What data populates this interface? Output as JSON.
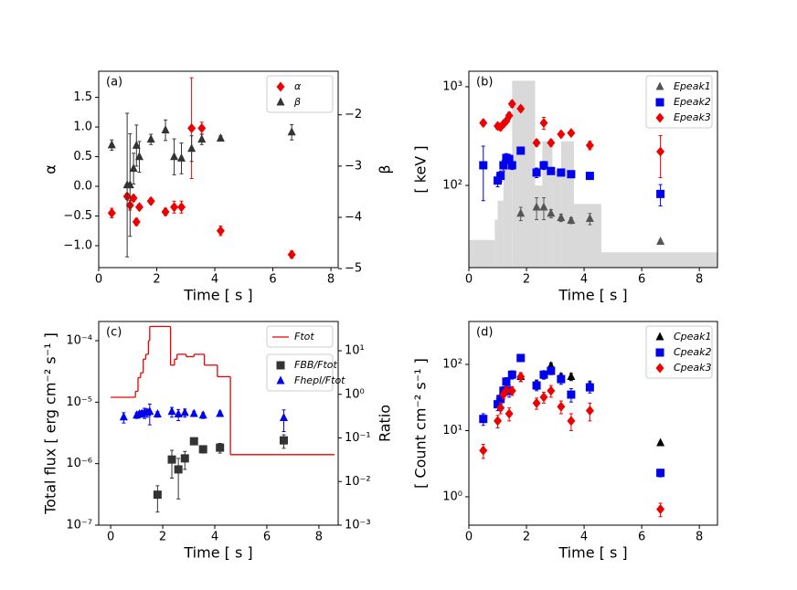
{
  "chart_data": [
    {
      "type": "scatter",
      "panel_label": "(a)",
      "xlabel": "Time [ s ]",
      "ylabel": "α",
      "y2label": "β",
      "xlim": [
        0,
        8.25
      ],
      "ylim": [
        -1.37,
        1.94
      ],
      "y2lim": [
        -4.98,
        -1.15
      ],
      "ylog": false,
      "y2log": false,
      "xticks": [
        0,
        2,
        4,
        6,
        8
      ],
      "yticks": [
        {
          "value": -1,
          "label": "−1.0"
        },
        {
          "value": -0.5,
          "label": "−0.5"
        },
        {
          "value": 0,
          "label": "0.0"
        },
        {
          "value": 0.5,
          "label": "0.5"
        },
        {
          "value": 1,
          "label": "1.0"
        },
        {
          "value": 1.5,
          "label": "1.5"
        }
      ],
      "y2ticks": [
        {
          "value": -5,
          "label": "−5"
        },
        {
          "value": -4,
          "label": "−4"
        },
        {
          "value": -3,
          "label": "−3"
        },
        {
          "value": -2,
          "label": "−2"
        }
      ],
      "legend": "upper right",
      "series": [
        {
          "name": "α",
          "color": "#ee0000",
          "marker": "diamond",
          "x": [
            0.45,
            0.98,
            1.08,
            1.2,
            1.3,
            1.4,
            1.8,
            2.3,
            2.6,
            2.85,
            3.2,
            3.55,
            4.2,
            6.65
          ],
          "values": [
            -0.45,
            -0.17,
            -0.32,
            -0.2,
            -0.6,
            -0.35,
            -0.25,
            -0.43,
            -0.35,
            -0.35,
            0.98,
            0.98,
            -0.75,
            -1.15
          ],
          "errors": [
            0.08,
            0.05,
            0.08,
            0.05,
            0.06,
            0.05,
            0.05,
            0.06,
            0.1,
            0.1,
            0.85,
            0.1,
            0.08,
            0.06
          ]
        },
        {
          "name": "β",
          "color": "#333333",
          "marker": "triangle",
          "axis": "y2",
          "x": [
            0.45,
            0.98,
            1.08,
            1.2,
            1.3,
            1.4,
            1.8,
            2.3,
            2.6,
            2.85,
            3.2,
            3.55,
            4.2,
            6.65
          ],
          "values": [
            -2.59,
            -3.37,
            -3.37,
            -3.05,
            -2.6,
            -2.82,
            -2.48,
            -2.3,
            -2.82,
            -2.85,
            -2.66,
            -2.48,
            -2.46,
            -2.34
          ],
          "errors": [
            0.1,
            1.4,
            1.0,
            0.3,
            0.4,
            0.3,
            0.1,
            0.2,
            0.35,
            0.3,
            0.25,
            0.1,
            0.05,
            0.15
          ]
        }
      ]
    },
    {
      "type": "scatter",
      "panel_label": "(b)",
      "xlabel": "Time [ s ]",
      "ylabel": "[ keV ]",
      "xlim": [
        0,
        8.63
      ],
      "ylim": [
        14.7,
        1436
      ],
      "ylog": true,
      "xticks": [
        0,
        2,
        4,
        6,
        8
      ],
      "yticks": [
        {
          "value": 100,
          "label": "10²"
        },
        {
          "value": 1000,
          "label": "10³"
        }
      ],
      "legend": "upper right",
      "histogram": {
        "color": "#d9d9d9",
        "bins": [
          0,
          0.9,
          1.0,
          1.2,
          1.5,
          2.3,
          2.55,
          2.9,
          3.2,
          3.65,
          4.6,
          8.63
        ],
        "values": [
          28,
          45,
          70,
          150,
          1150,
          100,
          280,
          140,
          280,
          65,
          21
        ]
      },
      "series": [
        {
          "name": "Epeak1",
          "color": "#555555",
          "marker": "triangle",
          "x": [
            1.8,
            2.35,
            2.6,
            2.85,
            3.2,
            3.55,
            4.2,
            6.65
          ],
          "values": [
            52,
            60,
            60,
            52,
            47,
            44,
            46,
            27
          ],
          "errors": [
            8,
            15,
            15,
            5,
            4,
            3,
            6,
            1
          ]
        },
        {
          "name": "Epeak2",
          "color": "#0000ee",
          "marker": "square",
          "x": [
            0.5,
            1.0,
            1.1,
            1.2,
            1.3,
            1.4,
            1.5,
            1.8,
            2.35,
            2.6,
            2.85,
            3.2,
            3.55,
            4.2,
            6.65
          ],
          "values": [
            160,
            112,
            125,
            160,
            190,
            185,
            160,
            225,
            135,
            160,
            140,
            135,
            130,
            125,
            82
          ],
          "errors": [
            90,
            15,
            15,
            20,
            20,
            20,
            15,
            15,
            15,
            15,
            10,
            10,
            10,
            10,
            20
          ]
        },
        {
          "name": "Epeak3",
          "color": "#ee0000",
          "marker": "diamond",
          "x": [
            0.5,
            1.0,
            1.1,
            1.2,
            1.3,
            1.4,
            1.5,
            1.8,
            2.35,
            2.6,
            2.85,
            3.2,
            3.55,
            4.2,
            6.65
          ],
          "values": [
            430,
            400,
            390,
            420,
            450,
            510,
            670,
            600,
            270,
            430,
            270,
            330,
            340,
            255,
            220
          ],
          "errors": [
            30,
            30,
            30,
            30,
            30,
            40,
            50,
            40,
            20,
            60,
            20,
            20,
            20,
            25,
            100
          ]
        }
      ]
    },
    {
      "type": "scatter",
      "panel_label": "(c)",
      "xlabel": "Time [ s ]",
      "ylabel": "Total flux [ erg cm⁻² s⁻¹ ]",
      "y2label": "Ratio",
      "xlim": [
        -0.46,
        8.74
      ],
      "ylim": [
        1e-07,
        0.000205
      ],
      "y2lim": [
        0.001,
        46.9
      ],
      "ylog": true,
      "y2log": true,
      "xticks": [
        0,
        2,
        4,
        6,
        8
      ],
      "yticks": [
        {
          "value": 1e-07,
          "label": "10⁻⁷"
        },
        {
          "value": 1e-06,
          "label": "10⁻⁶"
        },
        {
          "value": 1e-05,
          "label": "10⁻⁵"
        },
        {
          "value": 0.0001,
          "label": "10⁻⁴"
        }
      ],
      "y2ticks": [
        {
          "value": 0.001,
          "label": "10⁻³"
        },
        {
          "value": 0.01,
          "label": "10⁻²"
        },
        {
          "value": 0.1,
          "label": "10⁻¹"
        },
        {
          "value": 1,
          "label": "10⁰"
        },
        {
          "value": 10,
          "label": "10¹"
        }
      ],
      "legend": "upper right",
      "series": [
        {
          "name": "Ftot",
          "color": "#ee0000",
          "style": "step",
          "bins": [
            0,
            0.95,
            1.05,
            1.15,
            1.25,
            1.35,
            1.45,
            1.5,
            2.3,
            2.45,
            2.55,
            2.9,
            3.2,
            3.6,
            4.1,
            4.6,
            8.6
          ],
          "values": [
            1.2e-05,
            1.5e-05,
            2.5e-05,
            3e-05,
            5e-05,
            6e-05,
            0.0001,
            0.00017,
            4e-05,
            5e-05,
            6e-05,
            5.5e-05,
            6e-05,
            4e-05,
            2.6e-05,
            1.4e-06
          ]
        },
        {
          "name": "FBB/Ftot",
          "color": "#333333",
          "marker": "square",
          "axis": "y2",
          "x": [
            1.8,
            2.35,
            2.6,
            2.85,
            3.2,
            3.55,
            4.2,
            6.65
          ],
          "values": [
            0.005,
            0.032,
            0.019,
            0.034,
            0.084,
            0.055,
            0.06,
            0.088
          ],
          "errors": [
            0.003,
            0.02,
            0.015,
            0.015,
            0.01,
            0.01,
            0.015,
            0.03
          ]
        },
        {
          "name": "Fhepl/Ftot",
          "color": "#0000ee",
          "marker": "triangle",
          "axis": "y2",
          "x": [
            0.5,
            1.0,
            1.1,
            1.2,
            1.3,
            1.4,
            1.5,
            1.8,
            2.35,
            2.6,
            2.85,
            3.2,
            3.55,
            4.2,
            6.65
          ],
          "values": [
            0.3,
            0.33,
            0.35,
            0.36,
            0.38,
            0.38,
            0.4,
            0.35,
            0.4,
            0.35,
            0.38,
            0.36,
            0.33,
            0.36,
            0.29
          ],
          "errors": [
            0.08,
            0.05,
            0.05,
            0.06,
            0.1,
            0.08,
            0.2,
            0.05,
            0.1,
            0.1,
            0.08,
            0.05,
            0.05,
            0.05,
            0.15
          ]
        }
      ]
    },
    {
      "type": "scatter",
      "panel_label": "(d)",
      "xlabel": "Time [ s ]",
      "ylabel": "[ Count cm⁻² s⁻¹ ]",
      "xlim": [
        0,
        8.63
      ],
      "ylim": [
        0.373,
        445
      ],
      "ylog": true,
      "xticks": [
        0,
        2,
        4,
        6,
        8
      ],
      "yticks": [
        {
          "value": 1,
          "label": "10⁰"
        },
        {
          "value": 10,
          "label": "10¹"
        },
        {
          "value": 100,
          "label": "10²"
        }
      ],
      "legend": "upper right",
      "series": [
        {
          "name": "Cpeak1",
          "color": "#000000",
          "marker": "triangle",
          "x": [
            1.8,
            2.35,
            2.6,
            2.85,
            3.2,
            3.55,
            4.2,
            6.65
          ],
          "values": [
            65,
            50,
            70,
            95,
            65,
            65,
            48,
            6.5
          ],
          "errors": [
            10,
            8,
            10,
            10,
            8,
            8,
            8,
            0.3
          ]
        },
        {
          "name": "Cpeak2",
          "color": "#0000ee",
          "marker": "square",
          "x": [
            0.5,
            1.0,
            1.1,
            1.2,
            1.3,
            1.4,
            1.5,
            1.8,
            2.35,
            2.6,
            2.85,
            3.2,
            3.55,
            4.2,
            6.65
          ],
          "values": [
            15,
            25,
            30,
            40,
            55,
            40,
            70,
            125,
            48,
            70,
            80,
            60,
            35,
            45,
            2.3
          ],
          "errors": [
            3,
            5,
            5,
            6,
            8,
            8,
            10,
            15,
            8,
            10,
            10,
            10,
            8,
            8,
            0.3
          ]
        },
        {
          "name": "Cpeak3",
          "color": "#ee0000",
          "marker": "diamond",
          "x": [
            0.5,
            1.0,
            1.1,
            1.2,
            1.3,
            1.4,
            1.5,
            1.8,
            2.35,
            2.6,
            2.85,
            3.2,
            3.55,
            4.2,
            6.65
          ],
          "values": [
            5,
            14,
            22,
            35,
            40,
            18,
            40,
            65,
            26,
            32,
            40,
            23,
            14,
            20,
            0.65
          ],
          "errors": [
            1.2,
            3,
            4,
            5,
            6,
            4,
            6,
            10,
            5,
            6,
            8,
            5,
            4,
            6,
            0.15
          ]
        }
      ]
    }
  ]
}
